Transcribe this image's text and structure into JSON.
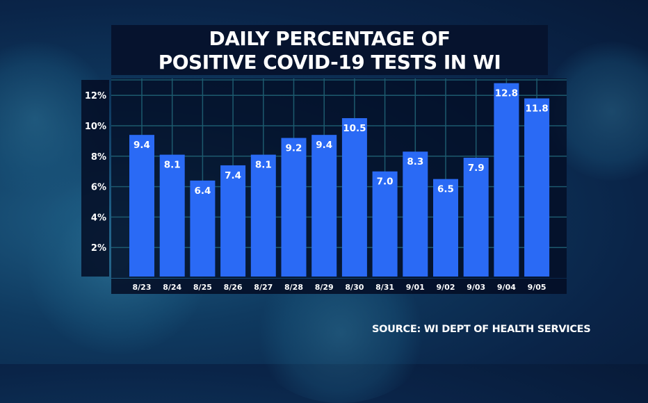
{
  "chart_data": {
    "type": "bar",
    "title_lines": [
      "DAILY PERCENTAGE OF",
      "POSITIVE COVID-19 TESTS IN WI"
    ],
    "categories": [
      "8/23",
      "8/24",
      "8/25",
      "8/26",
      "8/27",
      "8/28",
      "8/29",
      "8/30",
      "8/31",
      "9/01",
      "9/02",
      "9/03",
      "9/04",
      "9/05"
    ],
    "values": [
      9.4,
      8.1,
      6.4,
      7.4,
      8.1,
      9.2,
      9.4,
      10.5,
      7.0,
      8.3,
      6.5,
      7.9,
      12.8,
      11.8
    ],
    "data_labels": [
      "9.4",
      "8.1",
      "6.4",
      "7.4",
      "8.1",
      "9.2",
      "9.4",
      "10.5",
      "7.0",
      "8.3",
      "6.5",
      "7.9",
      "12.8",
      "11.8"
    ],
    "yticks": [
      2,
      4,
      6,
      8,
      10,
      12
    ],
    "ytick_labels": [
      "2%",
      "4%",
      "6%",
      "8%",
      "10%",
      "12%"
    ],
    "ylim": [
      0,
      13
    ],
    "grid": true,
    "bar_color": "#2a6af5",
    "xlabel": "",
    "ylabel": ""
  },
  "source": "SOURCE: WI DEPT OF HEALTH SERVICES"
}
